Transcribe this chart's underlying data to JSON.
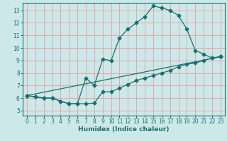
{
  "xlabel": "Humidex (Indice chaleur)",
  "bg_color": "#cce8e8",
  "grid_color": "#e8a0a0",
  "line_color": "#1a7070",
  "xlim": [
    -0.5,
    23.5
  ],
  "ylim": [
    4.6,
    13.6
  ],
  "xticks": [
    0,
    1,
    2,
    3,
    4,
    5,
    6,
    7,
    8,
    9,
    10,
    11,
    12,
    13,
    14,
    15,
    16,
    17,
    18,
    19,
    20,
    21,
    22,
    23
  ],
  "yticks": [
    5,
    6,
    7,
    8,
    9,
    10,
    11,
    12,
    13
  ],
  "line1_x": [
    0,
    1,
    2,
    3,
    4,
    5,
    6,
    7,
    8,
    9,
    10,
    11,
    12,
    13,
    14,
    15,
    16,
    17,
    18,
    19,
    20,
    21,
    22,
    23
  ],
  "line1_y": [
    6.2,
    6.1,
    6.0,
    6.0,
    5.75,
    5.55,
    5.55,
    5.55,
    5.6,
    6.5,
    6.5,
    6.8,
    7.1,
    7.4,
    7.6,
    7.8,
    8.0,
    8.2,
    8.5,
    8.7,
    8.8,
    9.0,
    9.2,
    9.3
  ],
  "line2_x": [
    0,
    1,
    2,
    3,
    4,
    5,
    6,
    7,
    8,
    9,
    10,
    11,
    12,
    13,
    14,
    15,
    16,
    17,
    18,
    19,
    20,
    21,
    22,
    23
  ],
  "line2_y": [
    6.2,
    6.1,
    6.0,
    6.0,
    5.75,
    5.55,
    5.55,
    7.6,
    7.0,
    9.1,
    9.0,
    10.8,
    11.5,
    12.0,
    12.5,
    13.35,
    13.2,
    13.0,
    12.6,
    11.5,
    9.8,
    9.5,
    9.2,
    9.3
  ],
  "line3_x": [
    0,
    23
  ],
  "line3_y": [
    6.2,
    9.3
  ]
}
